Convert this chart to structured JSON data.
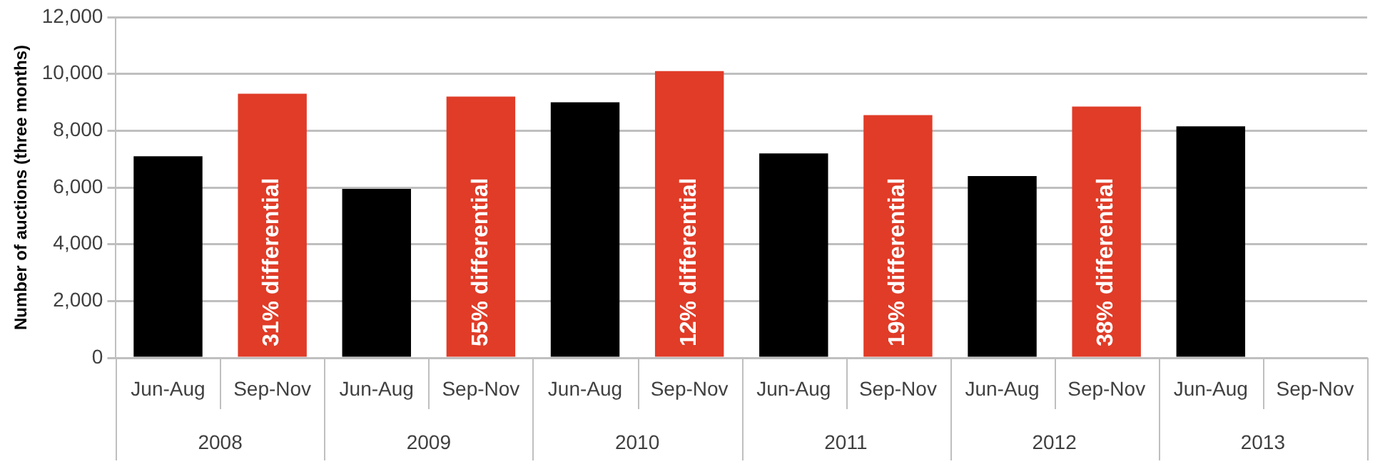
{
  "chart_data": {
    "type": "bar",
    "ylabel": "Number of auctions (three months)",
    "categories": [
      "Jun-Aug",
      "Sep-Nov",
      "Jun-Aug",
      "Sep-Nov",
      "Jun-Aug",
      "Sep-Nov",
      "Jun-Aug",
      "Sep-Nov",
      "Jun-Aug",
      "Sep-Nov",
      "Jun-Aug",
      "Sep-Nov"
    ],
    "values": [
      7100,
      9300,
      5950,
      9200,
      9000,
      10100,
      7200,
      8550,
      6400,
      8850,
      8150,
      null
    ],
    "colors": [
      "#000000",
      "#e03c28",
      "#000000",
      "#e03c28",
      "#000000",
      "#e03c28",
      "#000000",
      "#e03c28",
      "#000000",
      "#e03c28",
      "#000000",
      "#e03c28"
    ],
    "annotations": [
      "2008",
      "2009",
      "2010",
      "2011",
      "2012",
      "2013",
      "31% differential",
      "55% differential",
      "12% differential",
      "19% differential",
      "38% differential"
    ],
    "ylim": [
      0,
      12000
    ],
    "yticks": [
      {
        "value": 0,
        "label": "0"
      },
      {
        "value": 2000,
        "label": "2,000"
      },
      {
        "value": 4000,
        "label": "4,000"
      },
      {
        "value": 6000,
        "label": "6,000"
      },
      {
        "value": 8000,
        "label": "8,000"
      },
      {
        "value": 10000,
        "label": "10,000"
      },
      {
        "value": 12000,
        "label": "12,000"
      }
    ],
    "grid": "y",
    "legend": false
  }
}
